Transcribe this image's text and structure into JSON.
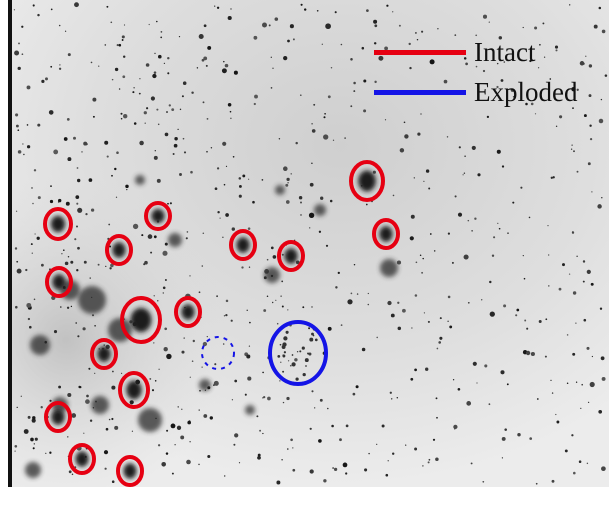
{
  "colors": {
    "intact": "#e60012",
    "exploded": "#1414e6"
  },
  "legend": {
    "items": [
      {
        "label": "Intact",
        "color_key": "intact"
      },
      {
        "label": "Exploded",
        "color_key": "exploded"
      }
    ]
  }
}
